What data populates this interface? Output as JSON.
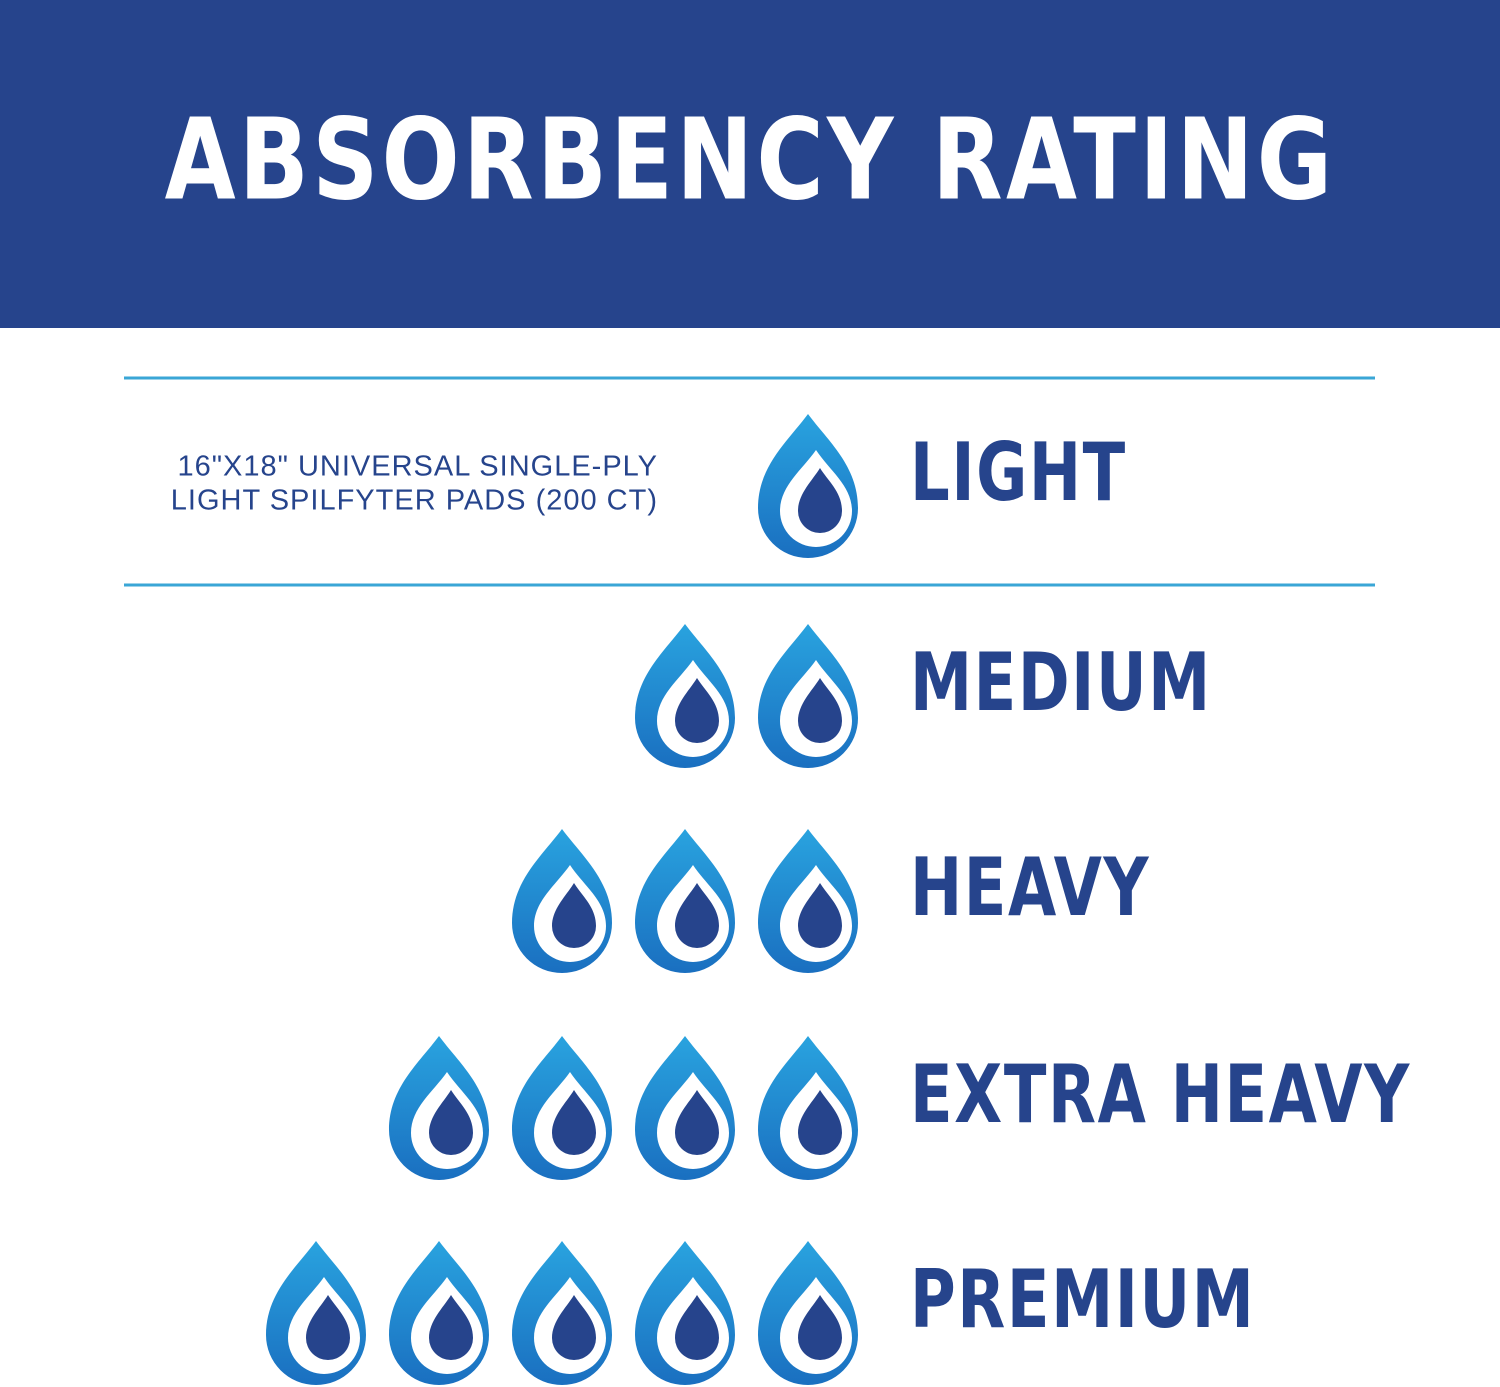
{
  "header": {
    "title": "ABSORBENCY RATING"
  },
  "levels": [
    {
      "label": "LIGHT",
      "drops": 1,
      "description": [
        "16\"X18\" UNIVERSAL SINGLE-PLY",
        "LIGHT SPILFYTER PADS (200 CT)"
      ]
    },
    {
      "label": "MEDIUM",
      "drops": 2
    },
    {
      "label": "HEAVY",
      "drops": 3
    },
    {
      "label": "EXTRA HEAVY",
      "drops": 4
    },
    {
      "label": "PREMIUM",
      "drops": 5
    }
  ]
}
